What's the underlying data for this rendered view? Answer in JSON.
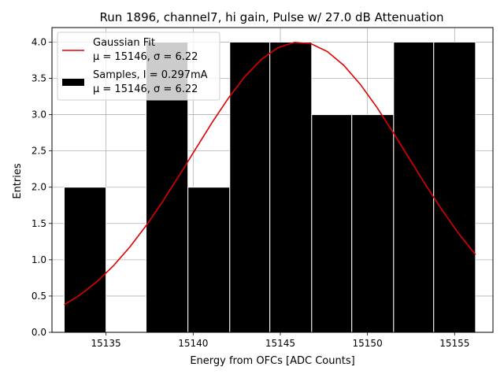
{
  "chart_data": {
    "type": "bar",
    "title": "Run 1896, channel7, hi gain, Pulse w/ 27.0 dB Attenuation",
    "xlabel": "Energy from OFCs [ADC Counts]",
    "ylabel": "Entries",
    "xlim": [
      15131.9,
      15157.2
    ],
    "ylim": [
      0,
      4.2
    ],
    "x_ticks": [
      15135,
      15140,
      15145,
      15150,
      15155
    ],
    "y_ticks": [
      0.0,
      0.5,
      1.0,
      1.5,
      2.0,
      2.5,
      3.0,
      3.5,
      4.0
    ],
    "grid": true,
    "legend_position": "top-left",
    "series": [
      {
        "name": "Samples, I = 0.297mA",
        "stats_label": "μ = 15146, σ = 6.22",
        "kind": "histogram",
        "color": "#000000",
        "bin_edges": [
          15132.6,
          15135.0,
          15137.3,
          15139.7,
          15142.1,
          15144.4,
          15146.8,
          15149.1,
          15151.5,
          15153.8,
          15156.2
        ],
        "counts": [
          2,
          0,
          4,
          2,
          4,
          4,
          3,
          3,
          4,
          4
        ]
      },
      {
        "name": "Gaussian Fit",
        "stats_label": "μ = 15146, σ = 6.22",
        "kind": "line",
        "color": "#e00000",
        "amplitude": 4.0,
        "mu": 15146.1,
        "sigma": 6.22,
        "x_range": [
          15132.6,
          15156.2
        ]
      }
    ]
  }
}
